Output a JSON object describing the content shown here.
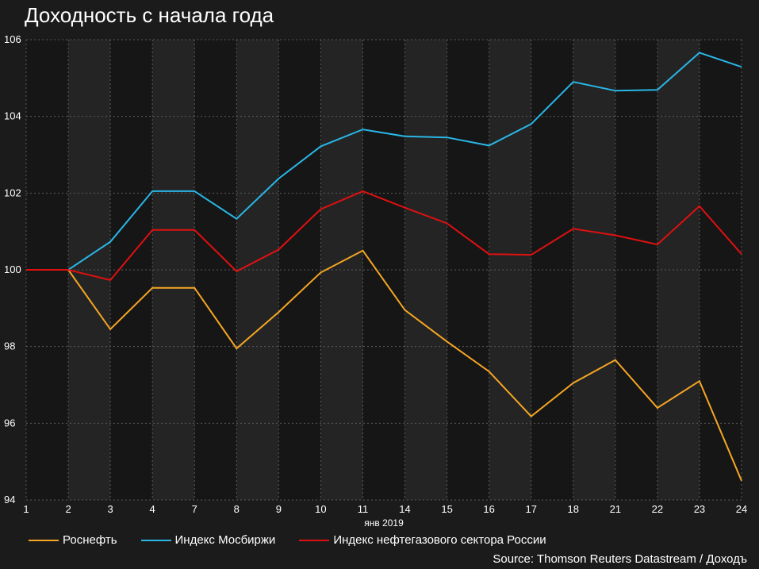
{
  "chart_data": {
    "type": "line",
    "title": "Доходность с начала года",
    "xlabel": "янв 2019",
    "ylabel": "",
    "categories": [
      "1",
      "2",
      "3",
      "4",
      "7",
      "8",
      "9",
      "10",
      "11",
      "14",
      "15",
      "16",
      "17",
      "18",
      "21",
      "22",
      "23",
      "24"
    ],
    "ylim": [
      94,
      106
    ],
    "yticks": [
      94,
      96,
      98,
      100,
      102,
      104,
      106
    ],
    "grid": true,
    "legend_position": "bottom-left",
    "series": [
      {
        "name": "Роснефть",
        "color": "#f5a623",
        "values": [
          100.0,
          100.0,
          98.45,
          99.53,
          99.53,
          97.95,
          98.9,
          99.93,
          100.5,
          98.95,
          98.13,
          97.35,
          96.18,
          97.05,
          97.65,
          96.4,
          97.1,
          94.5
        ]
      },
      {
        "name": "Индекс Мосбиржи",
        "color": "#29b6e6",
        "values": [
          100.0,
          100.0,
          100.73,
          102.05,
          102.05,
          101.33,
          102.38,
          103.22,
          103.66,
          103.48,
          103.45,
          103.24,
          103.8,
          104.9,
          104.67,
          104.69,
          105.66,
          105.29
        ]
      },
      {
        "name": "Индекс нефтегазового сектора России",
        "color": "#e01010",
        "values": [
          100.0,
          100.0,
          99.73,
          101.04,
          101.04,
          99.96,
          100.53,
          101.58,
          102.05,
          101.62,
          101.21,
          100.41,
          100.39,
          101.07,
          100.9,
          100.66,
          101.66,
          100.41
        ]
      }
    ]
  },
  "source": "Source: Thomson Reuters Datastream / Доходъ",
  "colors": {
    "background": "#1b1b1b",
    "band_light": "#242424",
    "band_dark": "#161616",
    "grid": "#5a5a5a"
  }
}
